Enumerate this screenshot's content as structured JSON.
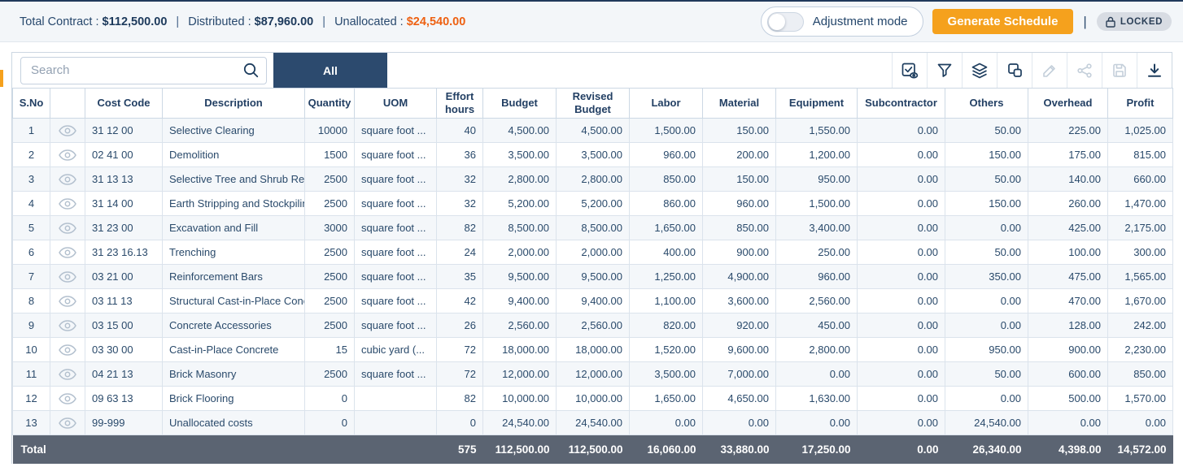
{
  "header": {
    "summary": {
      "total_label": "Total Contract :",
      "total_value": "$112,500.00",
      "sep": "|",
      "distributed_label": "Distributed :",
      "distributed_value": "$87,960.00",
      "unallocated_label": "Unallocated :",
      "unallocated_value": "$24,540.00"
    },
    "adjustment_mode_label": "Adjustment mode",
    "generate_button_label": "Generate Schedule",
    "pipe": "|",
    "locked_label": "LOCKED"
  },
  "toolbar": {
    "search_placeholder": "Search",
    "tab_all_label": "All",
    "icons": [
      {
        "name": "column-visibility-icon",
        "enabled": true
      },
      {
        "name": "filter-icon",
        "enabled": true
      },
      {
        "name": "layers-icon",
        "enabled": true
      },
      {
        "name": "duplicate-icon",
        "enabled": true
      },
      {
        "name": "edit-icon",
        "enabled": false
      },
      {
        "name": "share-icon",
        "enabled": false
      },
      {
        "name": "save-icon",
        "enabled": false
      },
      {
        "name": "download-icon",
        "enabled": true
      }
    ]
  },
  "table": {
    "columns": [
      "S.No",
      "",
      "Cost Code",
      "Description",
      "Quantity",
      "UOM",
      "Effort hours",
      "Budget",
      "Revised Budget",
      "Labor",
      "Material",
      "Equipment",
      "Subcontractor",
      "Others",
      "Overhead",
      "Profit"
    ],
    "rows": [
      {
        "sno": "1",
        "cost_code": "31 12 00",
        "description": "Selective Clearing",
        "quantity": "10000",
        "uom": "square foot ...",
        "effort_hours": "40",
        "budget": "4,500.00",
        "revised_budget": "4,500.00",
        "labor": "1,500.00",
        "material": "150.00",
        "equipment": "1,550.00",
        "subcontractor": "0.00",
        "others": "50.00",
        "overhead": "225.00",
        "profit": "1,025.00"
      },
      {
        "sno": "2",
        "cost_code": "02 41 00",
        "description": "Demolition",
        "quantity": "1500",
        "uom": "square foot ...",
        "effort_hours": "36",
        "budget": "3,500.00",
        "revised_budget": "3,500.00",
        "labor": "960.00",
        "material": "200.00",
        "equipment": "1,200.00",
        "subcontractor": "0.00",
        "others": "150.00",
        "overhead": "175.00",
        "profit": "815.00"
      },
      {
        "sno": "3",
        "cost_code": "31 13 13",
        "description": "Selective Tree and Shrub Rem...",
        "quantity": "2500",
        "uom": "square foot ...",
        "effort_hours": "32",
        "budget": "2,800.00",
        "revised_budget": "2,800.00",
        "labor": "850.00",
        "material": "150.00",
        "equipment": "950.00",
        "subcontractor": "0.00",
        "others": "50.00",
        "overhead": "140.00",
        "profit": "660.00"
      },
      {
        "sno": "4",
        "cost_code": "31 14 00",
        "description": "Earth Stripping and Stockpiling",
        "quantity": "2500",
        "uom": "square foot ...",
        "effort_hours": "32",
        "budget": "5,200.00",
        "revised_budget": "5,200.00",
        "labor": "860.00",
        "material": "960.00",
        "equipment": "1,500.00",
        "subcontractor": "0.00",
        "others": "150.00",
        "overhead": "260.00",
        "profit": "1,470.00"
      },
      {
        "sno": "5",
        "cost_code": "31 23 00",
        "description": "Excavation and Fill",
        "quantity": "3000",
        "uom": "square foot ...",
        "effort_hours": "82",
        "budget": "8,500.00",
        "revised_budget": "8,500.00",
        "labor": "1,650.00",
        "material": "850.00",
        "equipment": "3,400.00",
        "subcontractor": "0.00",
        "others": "0.00",
        "overhead": "425.00",
        "profit": "2,175.00"
      },
      {
        "sno": "6",
        "cost_code": "31 23 16.13",
        "description": "Trenching",
        "quantity": "2500",
        "uom": "square foot ...",
        "effort_hours": "24",
        "budget": "2,000.00",
        "revised_budget": "2,000.00",
        "labor": "400.00",
        "material": "900.00",
        "equipment": "250.00",
        "subcontractor": "0.00",
        "others": "50.00",
        "overhead": "100.00",
        "profit": "300.00"
      },
      {
        "sno": "7",
        "cost_code": "03 21 00",
        "description": "Reinforcement Bars",
        "quantity": "2500",
        "uom": "square foot ...",
        "effort_hours": "35",
        "budget": "9,500.00",
        "revised_budget": "9,500.00",
        "labor": "1,250.00",
        "material": "4,900.00",
        "equipment": "960.00",
        "subcontractor": "0.00",
        "others": "350.00",
        "overhead": "475.00",
        "profit": "1,565.00"
      },
      {
        "sno": "8",
        "cost_code": "03 11 13",
        "description": "Structural Cast-in-Place Conc...",
        "quantity": "2500",
        "uom": "square foot ...",
        "effort_hours": "42",
        "budget": "9,400.00",
        "revised_budget": "9,400.00",
        "labor": "1,100.00",
        "material": "3,600.00",
        "equipment": "2,560.00",
        "subcontractor": "0.00",
        "others": "0.00",
        "overhead": "470.00",
        "profit": "1,670.00"
      },
      {
        "sno": "9",
        "cost_code": "03 15 00",
        "description": "Concrete Accessories",
        "quantity": "2500",
        "uom": "square foot ...",
        "effort_hours": "26",
        "budget": "2,560.00",
        "revised_budget": "2,560.00",
        "labor": "820.00",
        "material": "920.00",
        "equipment": "450.00",
        "subcontractor": "0.00",
        "others": "0.00",
        "overhead": "128.00",
        "profit": "242.00"
      },
      {
        "sno": "10",
        "cost_code": "03 30 00",
        "description": "Cast-in-Place Concrete",
        "quantity": "15",
        "uom": "cubic yard (...",
        "effort_hours": "72",
        "budget": "18,000.00",
        "revised_budget": "18,000.00",
        "labor": "1,520.00",
        "material": "9,600.00",
        "equipment": "2,800.00",
        "subcontractor": "0.00",
        "others": "950.00",
        "overhead": "900.00",
        "profit": "2,230.00"
      },
      {
        "sno": "11",
        "cost_code": "04 21 13",
        "description": "Brick Masonry",
        "quantity": "2500",
        "uom": "square foot ...",
        "effort_hours": "72",
        "budget": "12,000.00",
        "revised_budget": "12,000.00",
        "labor": "3,500.00",
        "material": "7,000.00",
        "equipment": "0.00",
        "subcontractor": "0.00",
        "others": "50.00",
        "overhead": "600.00",
        "profit": "850.00"
      },
      {
        "sno": "12",
        "cost_code": "09 63 13",
        "description": "Brick Flooring",
        "quantity": "0",
        "uom": "",
        "effort_hours": "82",
        "budget": "10,000.00",
        "revised_budget": "10,000.00",
        "labor": "1,650.00",
        "material": "4,650.00",
        "equipment": "1,630.00",
        "subcontractor": "0.00",
        "others": "0.00",
        "overhead": "500.00",
        "profit": "1,570.00"
      },
      {
        "sno": "13",
        "cost_code": "99-999",
        "description": "Unallocated costs",
        "quantity": "0",
        "uom": "",
        "effort_hours": "0",
        "budget": "24,540.00",
        "revised_budget": "24,540.00",
        "labor": "0.00",
        "material": "0.00",
        "equipment": "0.00",
        "subcontractor": "0.00",
        "others": "24,540.00",
        "overhead": "0.00",
        "profit": "0.00"
      }
    ],
    "total": {
      "label": "Total",
      "effort_hours": "575",
      "budget": "112,500.00",
      "revised_budget": "112,500.00",
      "labor": "16,060.00",
      "material": "33,880.00",
      "equipment": "17,250.00",
      "subcontractor": "0.00",
      "others": "26,340.00",
      "overhead": "4,398.00",
      "profit": "14,572.00"
    }
  },
  "colors": {
    "accent_orange": "#F5A11D",
    "unallocated_orange": "#EE6112",
    "navy_text": "#24466B",
    "tab_navy": "#2C4A6E",
    "total_row_bg": "#5B6472"
  }
}
